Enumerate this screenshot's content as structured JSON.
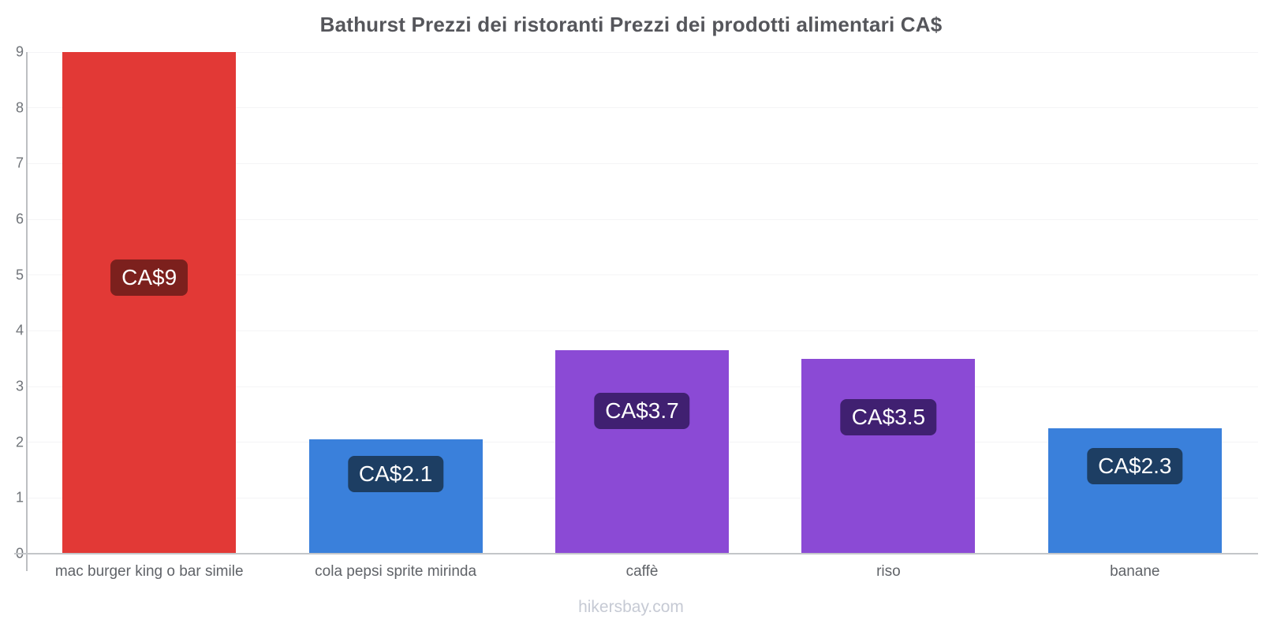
{
  "page": {
    "footer_link": "hikersbay.com"
  },
  "chart_data": {
    "type": "bar",
    "title": "Bathurst Prezzi dei ristoranti Prezzi dei prodotti alimentari CA$",
    "currency": "CA$",
    "categories": [
      "mac burger king o bar simile",
      "cola pepsi sprite mirinda",
      "caffè",
      "riso",
      "banane"
    ],
    "values": [
      9,
      2.05,
      3.65,
      3.5,
      2.25
    ],
    "value_labels": [
      "CA$9",
      "CA$2.1",
      "CA$3.7",
      "CA$3.5",
      "CA$2.3"
    ],
    "bar_colors": [
      "#e23936",
      "#3a80db",
      "#8b4ad5",
      "#8b4ad5",
      "#3a80db"
    ],
    "label_bg_colors": [
      "#7c201d",
      "#1d3e63",
      "#402071",
      "#402071",
      "#1d3e63"
    ],
    "xlabel": "",
    "ylabel": "",
    "ylim": [
      0,
      9
    ],
    "yticks": [
      0,
      1,
      2,
      3,
      4,
      5,
      6,
      7,
      8,
      9
    ],
    "grid": true,
    "legend": "none"
  }
}
